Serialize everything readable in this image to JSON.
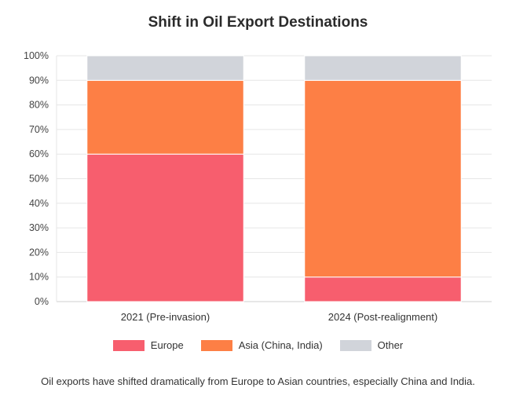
{
  "chart_data": {
    "type": "bar",
    "stacked": true,
    "title": "Shift in Oil Export Destinations",
    "categories": [
      "2021 (Pre-invasion)",
      "2024 (Post-realignment)"
    ],
    "series": [
      {
        "name": "Europe",
        "values": [
          60,
          10
        ],
        "color": "#f75e6e"
      },
      {
        "name": "Asia (China, India)",
        "values": [
          30,
          80
        ],
        "color": "#fd7f45"
      },
      {
        "name": "Other",
        "values": [
          10,
          10
        ],
        "color": "#d1d4da"
      }
    ],
    "ylim": [
      0,
      100
    ],
    "yticks": [
      "0%",
      "10%",
      "20%",
      "30%",
      "40%",
      "50%",
      "60%",
      "70%",
      "80%",
      "90%",
      "100%"
    ],
    "grid": true,
    "legend_position": "bottom",
    "caption": "Oil exports have shifted dramatically from Europe to Asian countries, especially China and India."
  }
}
